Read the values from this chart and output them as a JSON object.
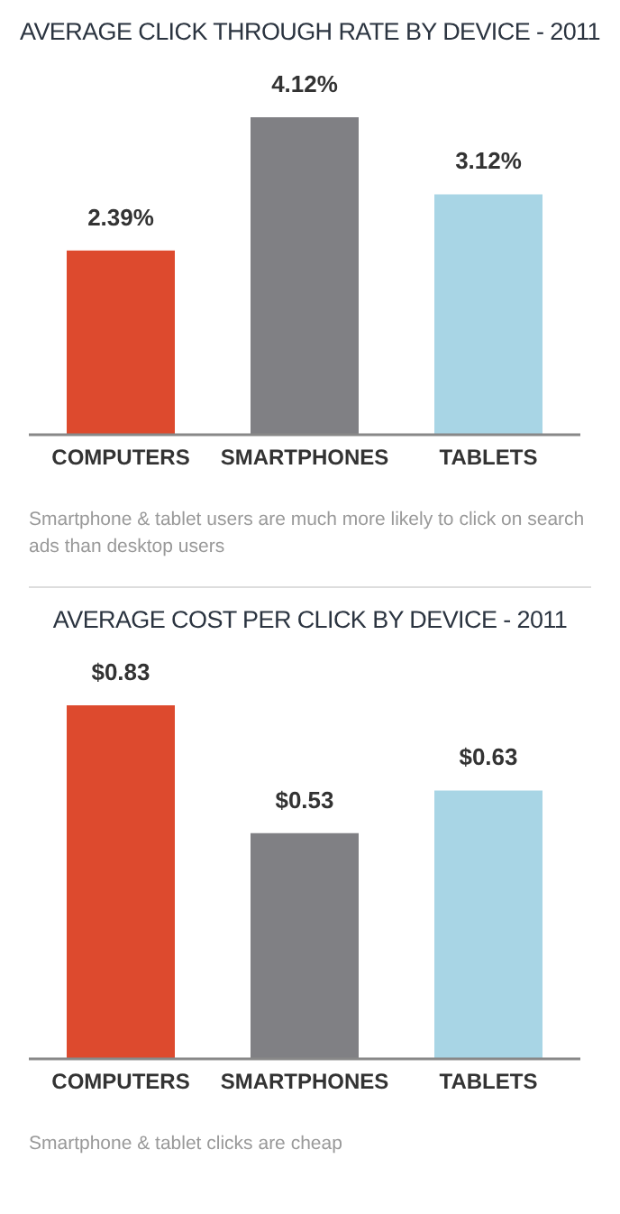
{
  "chart_data": [
    {
      "type": "bar",
      "title": "AVERAGE CLICK THROUGH RATE BY DEVICE - 2011",
      "categories": [
        "COMPUTERS",
        "SMARTPHONES",
        "TABLETS"
      ],
      "values": [
        2.39,
        4.12,
        3.12
      ],
      "colors": [
        "#dd4a2e",
        "#808084",
        "#a8d5e5"
      ],
      "value_labels": [
        "2.39%",
        "4.12%",
        "3.12%"
      ],
      "annotations": [
        "Smartphone & tablet users are much more likely to click on search ads than desktop users"
      ]
    },
    {
      "type": "bar",
      "title": "AVERAGE COST PER CLICK BY DEVICE - 2011",
      "categories": [
        "COMPUTERS",
        "SMARTPHONES",
        "TABLETS"
      ],
      "values": [
        0.83,
        0.53,
        0.63
      ],
      "colors": [
        "#dd4a2e",
        "#808084",
        "#a8d5e5"
      ],
      "value_labels": [
        "$0.83",
        "$0.53",
        "$0.63"
      ],
      "annotations": [
        "Smartphone & tablet clicks are cheap"
      ]
    }
  ]
}
